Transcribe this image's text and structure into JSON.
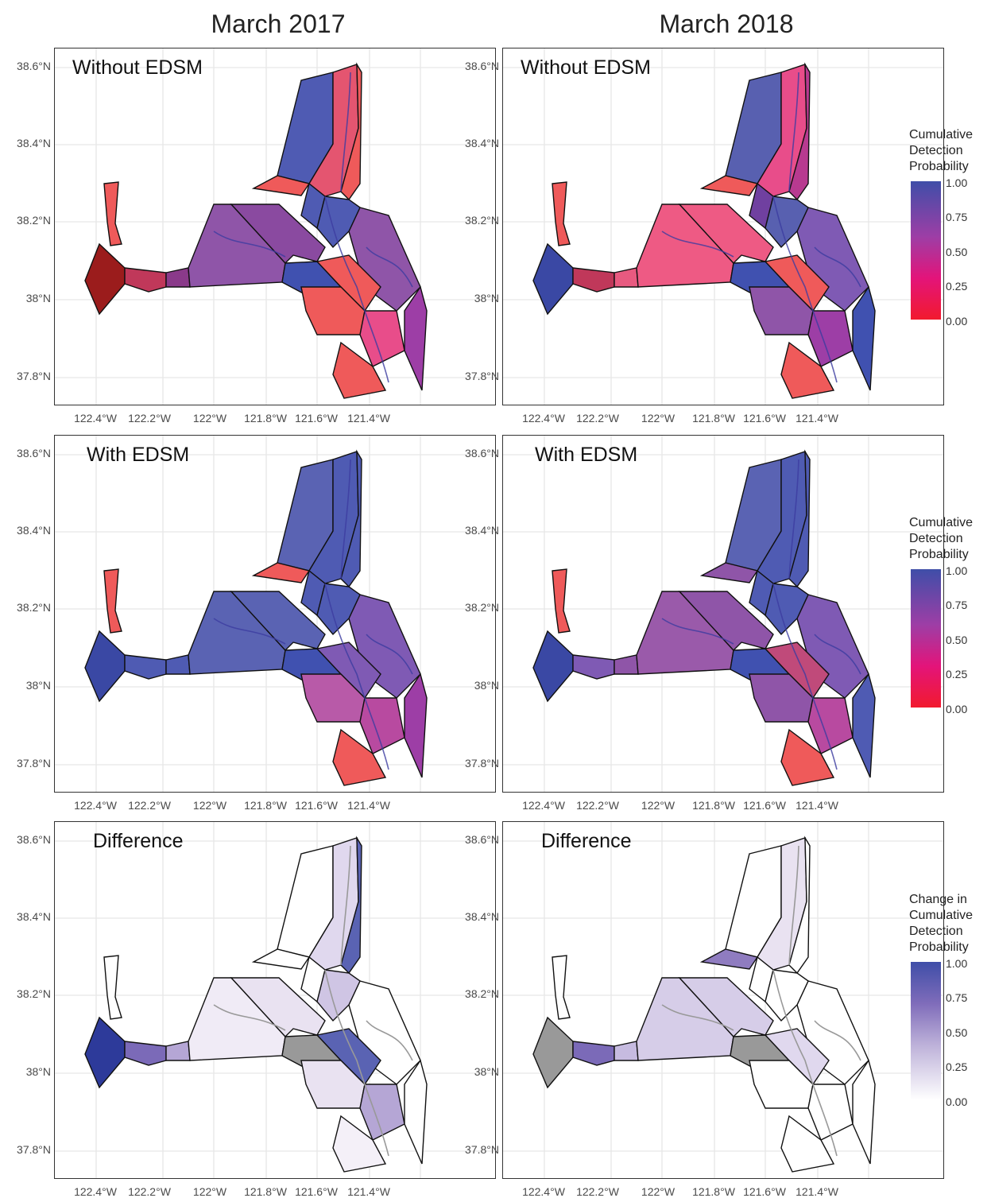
{
  "columns": [
    {
      "title": "March 2017"
    },
    {
      "title": "March 2018"
    }
  ],
  "rows": [
    {
      "label": "Without EDSM"
    },
    {
      "label": "With EDSM"
    },
    {
      "label": "Difference"
    }
  ],
  "axes": {
    "y_ticks": [
      "38.6°N",
      "38.4°N",
      "38.2°N",
      "38°N",
      "37.8°N"
    ],
    "x_ticks": [
      "122.4°W",
      "122.2°W",
      "122°W",
      "121.8°W",
      "121.6°W",
      "121.4°W"
    ]
  },
  "legends": [
    {
      "title_lines": [
        "Cumulative",
        "Detection",
        "Probability"
      ],
      "ticks": [
        "1.00",
        "0.75",
        "0.50",
        "0.25",
        "0.00"
      ],
      "colors": [
        "#3f4ea8",
        "#9d3ea6",
        "#e3147a",
        "#f21a2e"
      ]
    },
    {
      "title_lines": [
        "Cumulative",
        "Detection",
        "Probability"
      ],
      "ticks": [
        "1.00",
        "0.75",
        "0.50",
        "0.25",
        "0.00"
      ],
      "colors": [
        "#3f4ea8",
        "#9d3ea6",
        "#e3147a",
        "#f21a2e"
      ]
    },
    {
      "title_lines": [
        "Change in",
        "Cumulative",
        "Detection",
        "Probability"
      ],
      "ticks": [
        "1.00",
        "0.75",
        "0.50",
        "0.25",
        "0.00"
      ],
      "colors": [
        "#3f4ea8",
        "#7f6cba",
        "#bdb1d9",
        "#ffffff"
      ]
    }
  ],
  "palette": {
    "high": "#3f4ea8",
    "mid": "#9d3ea6",
    "pink": "#e84d8a",
    "red": "#ef5a5a",
    "darkred": "#9b1c1c",
    "grey": "#999999",
    "diff_light": "#e9e2f1",
    "diff_mid": "#b5a6d5"
  }
}
